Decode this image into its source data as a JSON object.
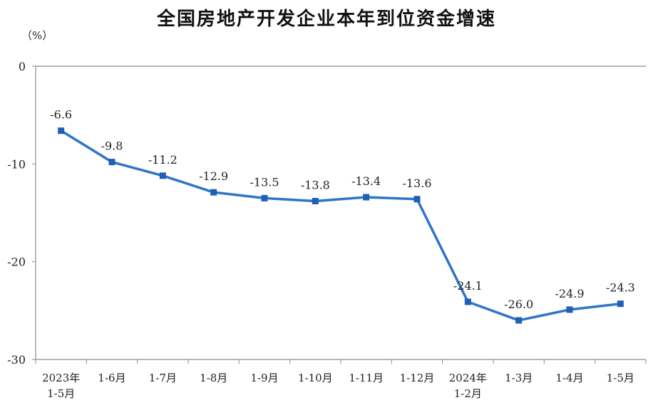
{
  "chart_data": {
    "type": "line",
    "title": "全国房地产开发企业本年到位资金增速",
    "ylabel": "（%）",
    "xlabel": "",
    "categories": [
      [
        "2023年",
        "1-5月"
      ],
      [
        "1-6月"
      ],
      [
        "1-7月"
      ],
      [
        "1-8月"
      ],
      [
        "1-9月"
      ],
      [
        "1-10月"
      ],
      [
        "1-11月"
      ],
      [
        "1-12月"
      ],
      [
        "2024年",
        "1-2月"
      ],
      [
        "1-3月"
      ],
      [
        "1-4月"
      ],
      [
        "1-5月"
      ]
    ],
    "values": [
      -6.6,
      -9.8,
      -11.2,
      -12.9,
      -13.5,
      -13.8,
      -13.4,
      -13.6,
      -24.1,
      -26.0,
      -24.9,
      -24.3
    ],
    "data_labels": [
      "-6.6",
      "-9.8",
      "-11.2",
      "-12.9",
      "-13.5",
      "-13.8",
      "-13.4",
      "-13.6",
      "-24.1",
      "-26.0",
      "-24.9",
      "-24.3"
    ],
    "ylim": [
      -30,
      0
    ],
    "yticks": [
      0,
      -10,
      -20,
      -30
    ],
    "ytick_labels": [
      "0",
      "-10",
      "-20",
      "-30"
    ],
    "grid": false,
    "legend": "none",
    "colors": {
      "line": "#2e75c9",
      "marker": "#1f5fb8",
      "axis": "#8c8c8c"
    }
  }
}
